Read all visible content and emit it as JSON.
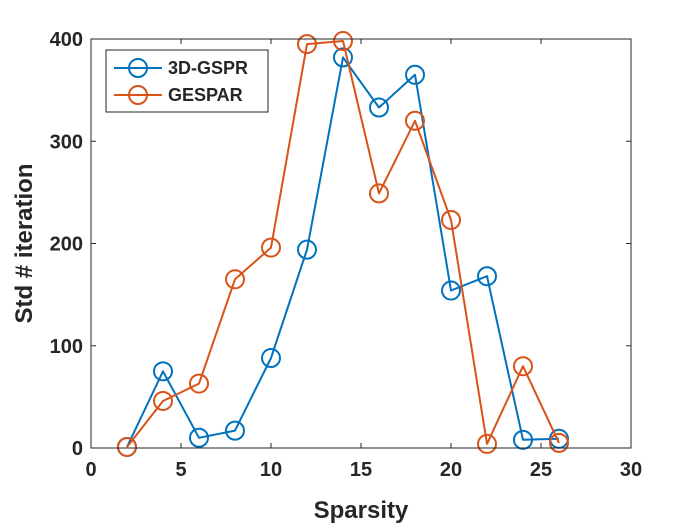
{
  "chart_data": {
    "type": "line",
    "title": "",
    "xlabel": "Sparsity",
    "ylabel": "Std # iteration",
    "xlim": [
      0,
      30
    ],
    "ylim": [
      0,
      400
    ],
    "xticks": [
      0,
      5,
      10,
      15,
      20,
      25,
      30
    ],
    "yticks": [
      0,
      100,
      200,
      300,
      400
    ],
    "grid": false,
    "legend_position": "top-left",
    "marker": "circle-open",
    "series": [
      {
        "name": "3D-GSPR",
        "color": "#0072BD",
        "x": [
          2,
          4,
          6,
          8,
          10,
          12,
          14,
          16,
          18,
          20,
          22,
          24,
          26
        ],
        "y": [
          1,
          75,
          10,
          17,
          88,
          194,
          382,
          333,
          365,
          154,
          168,
          8,
          9
        ]
      },
      {
        "name": "GESPAR",
        "color": "#D95319",
        "x": [
          2,
          4,
          6,
          8,
          10,
          12,
          14,
          16,
          18,
          20,
          22,
          24,
          26
        ],
        "y": [
          1,
          46,
          63,
          165,
          196,
          395,
          398,
          249,
          320,
          223,
          4,
          80,
          5
        ]
      }
    ]
  }
}
